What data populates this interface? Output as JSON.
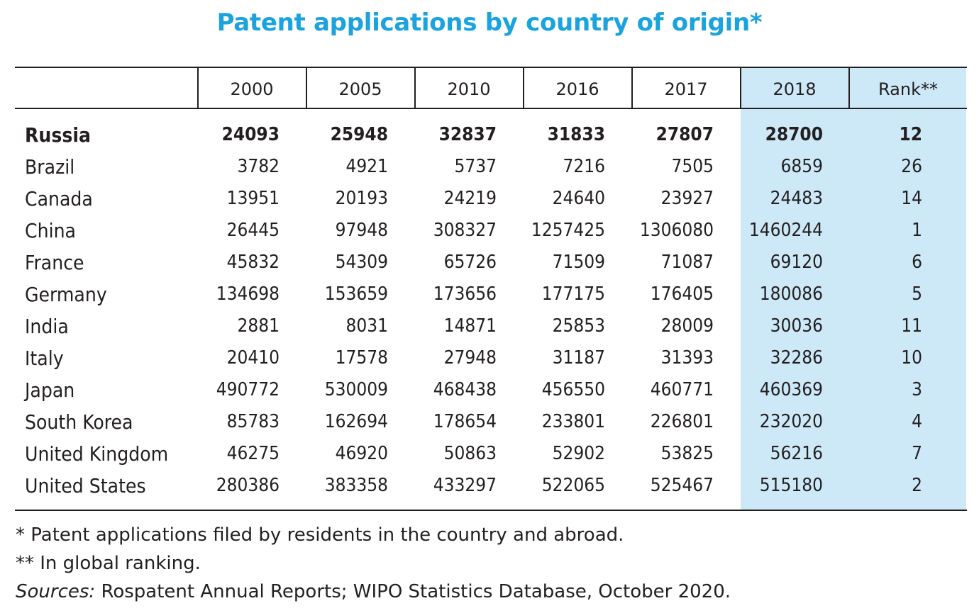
{
  "title": "Patent applications by country of origin*",
  "colors": {
    "title": "#1aa3dc",
    "highlight": "#cde9f8",
    "text": "#231f20"
  },
  "header": {
    "columns": [
      "2000",
      "2005",
      "2010",
      "2016",
      "2017",
      "2018",
      "Rank**"
    ],
    "highlighted_column": "2018"
  },
  "rows": [
    {
      "country": "Russia",
      "values": [
        "24093",
        "25948",
        "32837",
        "31833",
        "27807",
        "28700"
      ],
      "rank": "12",
      "bold": true
    },
    {
      "country": "Brazil",
      "values": [
        "3782",
        "4921",
        "5737",
        "7216",
        "7505",
        "6859"
      ],
      "rank": "26"
    },
    {
      "country": "Canada",
      "values": [
        "13951",
        "20193",
        "24219",
        "24640",
        "23927",
        "24483"
      ],
      "rank": "14"
    },
    {
      "country": "China",
      "values": [
        "26445",
        "97948",
        "308327",
        "1257425",
        "1306080",
        "1460244"
      ],
      "rank": "1"
    },
    {
      "country": "France",
      "values": [
        "45832",
        "54309",
        "65726",
        "71509",
        "71087",
        "69120"
      ],
      "rank": "6"
    },
    {
      "country": "Germany",
      "values": [
        "134698",
        "153659",
        "173656",
        "177175",
        "176405",
        "180086"
      ],
      "rank": "5"
    },
    {
      "country": "India",
      "values": [
        "2881",
        "8031",
        "14871",
        "25853",
        "28009",
        "30036"
      ],
      "rank": "11"
    },
    {
      "country": "Italy",
      "values": [
        "20410",
        "17578",
        "27948",
        "31187",
        "31393",
        "32286"
      ],
      "rank": "10"
    },
    {
      "country": "Japan",
      "values": [
        "490772",
        "530009",
        "468438",
        "456550",
        "460771",
        "460369"
      ],
      "rank": "3"
    },
    {
      "country": "South Korea",
      "values": [
        "85783",
        "162694",
        "178654",
        "233801",
        "226801",
        "232020"
      ],
      "rank": "4"
    },
    {
      "country": "United Kingdom",
      "values": [
        "46275",
        "46920",
        "50863",
        "52902",
        "53825",
        "56216"
      ],
      "rank": "7"
    },
    {
      "country": "United States",
      "values": [
        "280386",
        "383358",
        "433297",
        "522065",
        "525467",
        "515180"
      ],
      "rank": "2"
    }
  ],
  "footnotes": {
    "note1": " * Patent applications filed by residents in the country and abroad.",
    "note2": "** In global ranking.",
    "sources_label": "Sources:",
    "sources_text": " Rospatent Annual Reports; WIPO Statistics Database, October 2020."
  }
}
